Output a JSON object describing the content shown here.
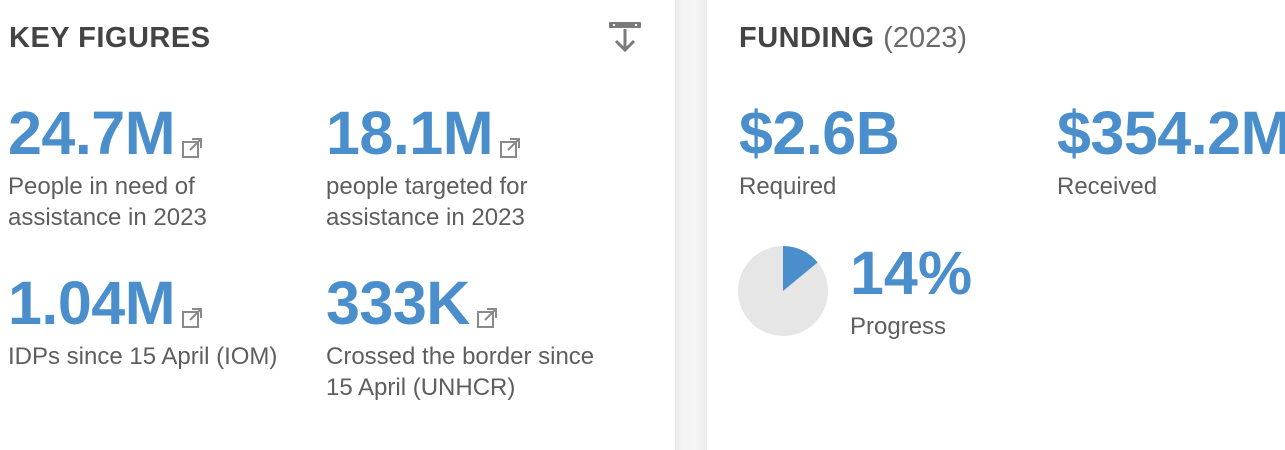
{
  "key_figures": {
    "title": "KEY FIGURES",
    "download_icon": "download-icon",
    "items": [
      {
        "value": "24.7M",
        "label": "People in need of assistance in 2023",
        "icon": "external-link-icon"
      },
      {
        "value": "18.1M",
        "label": "people targeted for assistance in 2023",
        "icon": "external-link-icon"
      },
      {
        "value": "1.04M",
        "label": "IDPs since 15 April (IOM)",
        "icon": "external-link-icon"
      },
      {
        "value": "333K",
        "label": "Crossed the border since 15 April (UNHCR)",
        "icon": "external-link-icon"
      }
    ]
  },
  "funding": {
    "title": "FUNDING",
    "year": "(2023)",
    "required": {
      "value": "$2.6B",
      "label": "Required"
    },
    "received": {
      "value": "$354.2M",
      "label": "Received"
    },
    "progress": {
      "value": "14%",
      "label": "Progress",
      "fraction": 0.14
    }
  },
  "colors": {
    "accent": "#4a8fcb",
    "pie_background": "#e6e6e6",
    "title_text": "#444444",
    "label_text": "#5e5e5e"
  }
}
